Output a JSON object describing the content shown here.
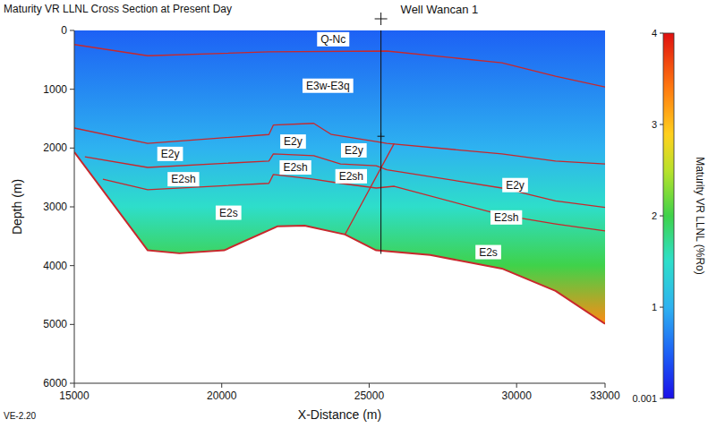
{
  "chart_data": {
    "type": "cross_section",
    "title": "Maturity VR LLNL Cross Section at Present Day",
    "xlabel": "X-Distance (m)",
    "ylabel": "Depth (m)",
    "xlim": [
      15000,
      33000
    ],
    "xticks": [
      15000,
      20000,
      25000,
      30000,
      33000
    ],
    "ylim": [
      0,
      6000
    ],
    "yticks": [
      0,
      1000,
      2000,
      3000,
      4000,
      5000,
      6000
    ],
    "horizons": [
      {
        "x": [
          15000,
          17490,
          21600,
          25600,
          29500,
          31320,
          33000
        ],
        "depth": [
          240,
          430,
          365,
          350,
          550,
          780,
          960
        ]
      },
      {
        "x": [
          15000,
          17490,
          21600,
          21750,
          23120,
          23720,
          25240,
          25600,
          29500,
          31320,
          33000
        ],
        "depth": [
          1660,
          1920,
          1770,
          1610,
          1580,
          1770,
          1890,
          1920,
          2100,
          2220,
          2270
        ]
      },
      {
        "x": [
          15360,
          17490,
          21600,
          21750,
          23120,
          24030,
          25240,
          25600,
          29500,
          31320,
          33000
        ],
        "depth": [
          2150,
          2330,
          2220,
          2100,
          2130,
          2270,
          2300,
          2370,
          2680,
          2900,
          3010
        ]
      },
      {
        "x": [
          15970,
          17490,
          21600,
          21750,
          23120,
          24030,
          25240,
          25850,
          29500,
          31320,
          33000
        ],
        "depth": [
          2530,
          2710,
          2600,
          2450,
          2530,
          2600,
          2680,
          2650,
          3140,
          3290,
          3410
        ]
      },
      {
        "x": [
          15000,
          17490,
          18560,
          20080,
          21900,
          22810,
          24180,
          25240,
          27070,
          29500,
          31320,
          33000
        ],
        "depth": [
          2070,
          3740,
          3790,
          3740,
          3330,
          3320,
          3470,
          3740,
          3820,
          4050,
          4430,
          4990
        ]
      }
    ],
    "faults": [
      {
        "x": [
          25850,
          24180
        ],
        "depth": [
          1920,
          3470
        ]
      }
    ],
    "maturity_profile": {
      "depth": [
        0,
        1000,
        2000,
        3000,
        4000,
        5000
      ],
      "ro": [
        0.5,
        0.75,
        1.0,
        1.5,
        2.0,
        3.3
      ]
    },
    "colorbar": {
      "label": "Maturity VR LLNL (%Ro)",
      "lim": [
        0.001,
        4
      ],
      "ticks": [
        0.001,
        1,
        2,
        3,
        4
      ]
    },
    "well": {
      "name": "Well Wancan 1",
      "x": 25400,
      "depth": [
        0,
        3800
      ],
      "marker_depth": 1800
    },
    "labels": [
      {
        "text": "Q-Nc",
        "x": 23780,
        "depth": 150
      },
      {
        "text": "E3w-E3q",
        "x": 23600,
        "depth": 940
      },
      {
        "text": "E2y",
        "x": 18250,
        "depth": 2100
      },
      {
        "text": "E2sh",
        "x": 18700,
        "depth": 2530
      },
      {
        "text": "E2s",
        "x": 20230,
        "depth": 3100
      },
      {
        "text": "E2y",
        "x": 22420,
        "depth": 1890
      },
      {
        "text": "E2sh",
        "x": 22500,
        "depth": 2330
      },
      {
        "text": "E2y",
        "x": 24480,
        "depth": 2040
      },
      {
        "text": "E2sh",
        "x": 24390,
        "depth": 2480
      },
      {
        "text": "E2y",
        "x": 29950,
        "depth": 2630
      },
      {
        "text": "E2sh",
        "x": 29650,
        "depth": 3180
      },
      {
        "text": "E2s",
        "x": 29040,
        "depth": 3770
      }
    ],
    "annotation": "VE-2.20"
  }
}
